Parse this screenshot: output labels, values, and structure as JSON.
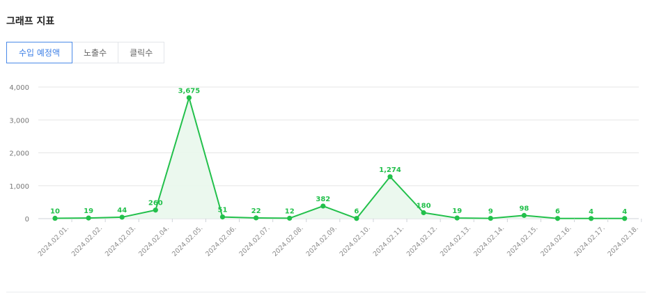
{
  "header": {
    "title": "그래프 지표"
  },
  "tabs": [
    {
      "label": "수입 예정액",
      "active": true
    },
    {
      "label": "노출수",
      "active": false
    },
    {
      "label": "클릭수",
      "active": false
    }
  ],
  "colors": {
    "line": "#22c04b",
    "fill": "#e9f7ec",
    "grid": "#e6e6e6",
    "axis_text": "#777777",
    "active_tab": "#3d7fe6"
  },
  "chart_data": {
    "type": "area",
    "x": [
      "2024.02.01.",
      "2024.02.02.",
      "2024.02.03.",
      "2024.02.04.",
      "2024.02.05.",
      "2024.02.06.",
      "2024.02.07.",
      "2024.02.08.",
      "2024.02.09.",
      "2024.02.10.",
      "2024.02.11.",
      "2024.02.12.",
      "2024.02.13.",
      "2024.02.14.",
      "2024.02.15.",
      "2024.02.16.",
      "2024.02.17.",
      "2024.02.18."
    ],
    "values": [
      10,
      19,
      44,
      260,
      3675,
      51,
      22,
      12,
      382,
      6,
      1274,
      180,
      19,
      9,
      98,
      6,
      4,
      4
    ],
    "data_labels": [
      "10",
      "19",
      "44",
      "260",
      "3,675",
      "51",
      "22",
      "12",
      "382",
      "6",
      "1,274",
      "180",
      "19",
      "9",
      "98",
      "6",
      "4",
      "4"
    ],
    "ylim": [
      0,
      4000
    ],
    "yticks": [
      0,
      1000,
      2000,
      3000,
      4000
    ],
    "ytick_labels": [
      "0",
      "1,000",
      "2,000",
      "3,000",
      "4,000"
    ],
    "grid": true,
    "title": "",
    "xlabel": "",
    "ylabel": ""
  }
}
